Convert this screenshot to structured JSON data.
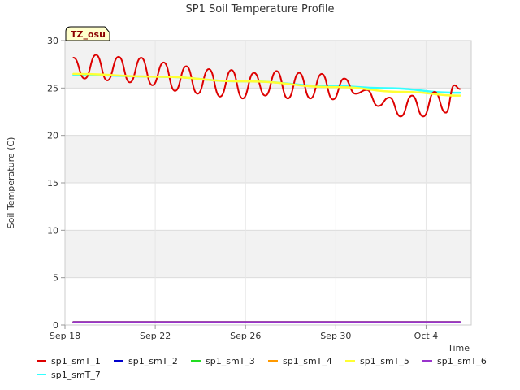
{
  "chart_data": {
    "type": "line",
    "title": "SP1 Soil Temperature Profile",
    "xlabel": "Time",
    "ylabel": "Soil Temperature (C)",
    "badge": "TZ_osu",
    "ylim": [
      0,
      30
    ],
    "yticks": [
      0,
      5,
      10,
      15,
      20,
      25,
      30
    ],
    "xlim": [
      "2023-09-18",
      "2023-10-06"
    ],
    "xticks": [
      {
        "date": "2023-09-18",
        "label": "Sep 18"
      },
      {
        "date": "2023-09-22",
        "label": "Sep 22"
      },
      {
        "date": "2023-09-26",
        "label": "Sep 26"
      },
      {
        "date": "2023-09-30",
        "label": "Sep 30"
      },
      {
        "date": "2023-10-04",
        "label": "Oct 4"
      }
    ],
    "grid": true,
    "legend_placement": "bottom",
    "series": [
      {
        "name": "sp1_smT_1",
        "color": "#dd0000",
        "points": [
          [
            "2023-09-18 09:00",
            28.2
          ],
          [
            "2023-09-18 21:00",
            26.0
          ],
          [
            "2023-09-19 09:00",
            28.5
          ],
          [
            "2023-09-19 21:00",
            25.8
          ],
          [
            "2023-09-20 09:00",
            28.3
          ],
          [
            "2023-09-20 21:00",
            25.6
          ],
          [
            "2023-09-21 09:00",
            28.2
          ],
          [
            "2023-09-21 21:00",
            25.3
          ],
          [
            "2023-09-22 09:00",
            27.7
          ],
          [
            "2023-09-22 21:00",
            24.7
          ],
          [
            "2023-09-23 09:00",
            27.3
          ],
          [
            "2023-09-23 21:00",
            24.4
          ],
          [
            "2023-09-24 09:00",
            27.0
          ],
          [
            "2023-09-24 21:00",
            24.1
          ],
          [
            "2023-09-25 09:00",
            26.9
          ],
          [
            "2023-09-25 21:00",
            23.9
          ],
          [
            "2023-09-26 09:00",
            26.6
          ],
          [
            "2023-09-26 21:00",
            24.2
          ],
          [
            "2023-09-27 09:00",
            26.8
          ],
          [
            "2023-09-27 21:00",
            23.9
          ],
          [
            "2023-09-28 09:00",
            26.6
          ],
          [
            "2023-09-28 21:00",
            23.9
          ],
          [
            "2023-09-29 09:00",
            26.5
          ],
          [
            "2023-09-29 21:00",
            23.8
          ],
          [
            "2023-09-30 09:00",
            26.0
          ],
          [
            "2023-09-30 21:00",
            24.4
          ],
          [
            "2023-10-01 09:00",
            24.8
          ],
          [
            "2023-10-01 21:00",
            23.1
          ],
          [
            "2023-10-02 09:00",
            24.0
          ],
          [
            "2023-10-02 21:00",
            22.0
          ],
          [
            "2023-10-03 09:00",
            24.2
          ],
          [
            "2023-10-03 21:00",
            22.0
          ],
          [
            "2023-10-04 09:00",
            24.6
          ],
          [
            "2023-10-04 21:00",
            22.4
          ],
          [
            "2023-10-05 06:00",
            25.3
          ],
          [
            "2023-10-05 12:00",
            24.9
          ]
        ]
      },
      {
        "name": "sp1_smT_2",
        "color": "#0000cc",
        "points": [
          [
            "2023-09-18 09:00",
            0.3
          ],
          [
            "2023-10-05 12:00",
            0.3
          ]
        ]
      },
      {
        "name": "sp1_smT_3",
        "color": "#22dd22",
        "points": [
          [
            "2023-09-18 09:00",
            0.3
          ],
          [
            "2023-10-05 12:00",
            0.3
          ]
        ]
      },
      {
        "name": "sp1_smT_4",
        "color": "#ff9900",
        "points": [
          [
            "2023-09-18 09:00",
            0.3
          ],
          [
            "2023-10-05 12:00",
            0.3
          ]
        ]
      },
      {
        "name": "sp1_smT_5",
        "color": "#ffff33",
        "points": [
          [
            "2023-09-18 09:00",
            26.5
          ],
          [
            "2023-09-22 00:00",
            26.2
          ],
          [
            "2023-09-26 00:00",
            25.7
          ],
          [
            "2023-09-30 00:00",
            25.1
          ],
          [
            "2023-10-03 00:00",
            24.6
          ],
          [
            "2023-10-05 12:00",
            24.2
          ]
        ]
      },
      {
        "name": "sp1_smT_6",
        "color": "#9933cc",
        "points": [
          [
            "2023-09-18 09:00",
            0.3
          ],
          [
            "2023-10-05 12:00",
            0.3
          ]
        ]
      },
      {
        "name": "sp1_smT_7",
        "color": "#33ffff",
        "points": [
          [
            "2023-09-18 09:00",
            26.4
          ],
          [
            "2023-09-22 00:00",
            26.2
          ],
          [
            "2023-09-26 00:00",
            25.7
          ],
          [
            "2023-09-30 00:00",
            25.2
          ],
          [
            "2023-10-02 00:00",
            25.0
          ],
          [
            "2023-10-05 12:00",
            24.5
          ]
        ]
      }
    ]
  }
}
